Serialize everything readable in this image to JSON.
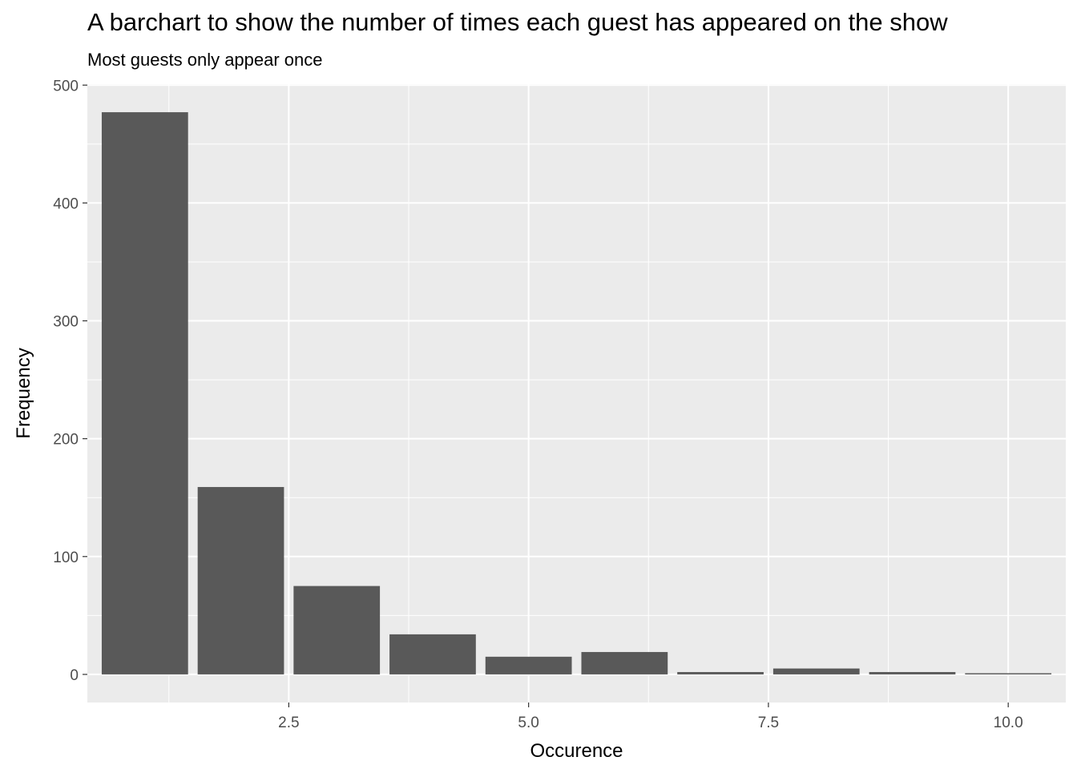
{
  "chart_data": {
    "type": "bar",
    "title": "A barchart to show the number of times each guest has appeared on the show",
    "subtitle": "Most guests only appear once",
    "xlabel": "Occurence",
    "ylabel": "Frequency",
    "x": [
      1,
      2,
      3,
      4,
      5,
      6,
      7,
      8,
      9,
      10
    ],
    "values": [
      477,
      159,
      75,
      34,
      15,
      19,
      2,
      5,
      2,
      1
    ],
    "xlim": [
      0.4,
      10.6
    ],
    "ylim": [
      -23.85,
      500.85
    ],
    "x_ticks": [
      2.5,
      5.0,
      7.5,
      10.0
    ],
    "x_tick_labels": [
      "2.5",
      "5.0",
      "7.5",
      "10.0"
    ],
    "y_ticks": [
      0,
      100,
      200,
      300,
      400,
      500
    ],
    "y_tick_labels": [
      "0",
      "100",
      "200",
      "300",
      "400",
      "500"
    ],
    "grid": true,
    "colors": {
      "panel_background": "#EBEBEB",
      "grid_line": "#FFFFFF",
      "bar_fill": "#595959",
      "tick_label": "#4D4D4D",
      "axis_title": "#000000"
    }
  }
}
